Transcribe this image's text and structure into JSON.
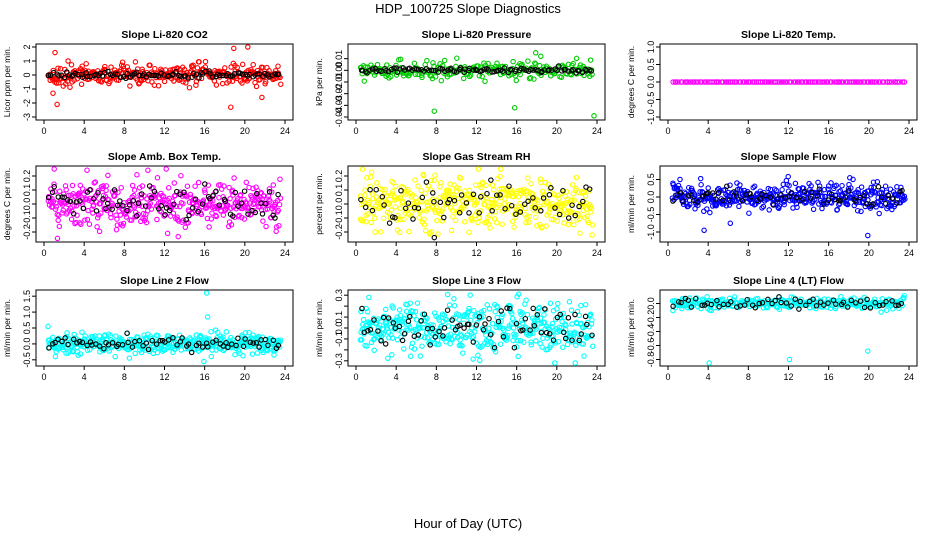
{
  "title": "HDP_100725  Slope Diagnostics",
  "xlabel": "Hour of Day (UTC)",
  "colors": {
    "red": "#ff0000",
    "green": "#00cc00",
    "magenta": "#ff00ff",
    "yellow": "#ffff00",
    "blue": "#0000ff",
    "cyan": "#00ffff",
    "black": "#000000"
  },
  "chart_data": [
    {
      "type": "scatter",
      "title": "Slope Li-820 CO2",
      "ylabel": "Licor ppm per min.",
      "xlim": [
        0,
        24
      ],
      "ylim": [
        -3,
        2
      ],
      "xticks": [
        0,
        4,
        8,
        12,
        16,
        20,
        24
      ],
      "yticks": [
        -3,
        -2,
        -1,
        0,
        1,
        2
      ],
      "ytick_labels": [
        "-3",
        "-2",
        "-1",
        "0",
        "1",
        "2"
      ],
      "series": [
        {
          "color": "red",
          "center": 0,
          "spread": 0.35,
          "n": 330,
          "outliers": [
            [
              1.1,
              1.6
            ],
            [
              0.9,
              -1.3
            ],
            [
              1.3,
              -2.1
            ],
            [
              18.9,
              1.9
            ],
            [
              20.3,
              2.0
            ],
            [
              18.6,
              -2.3
            ],
            [
              21.7,
              -1.6
            ],
            [
              2.4,
              1.0
            ]
          ]
        },
        {
          "color": "black",
          "center": 0,
          "spread": 0.12,
          "n": 95,
          "outliers": []
        }
      ]
    },
    {
      "type": "scatter",
      "title": "Slope Li-820 Pressure",
      "ylabel": "kPa per min.",
      "xlim": [
        0,
        24
      ],
      "ylim": [
        -0.04,
        0.02
      ],
      "xticks": [
        0,
        4,
        8,
        12,
        16,
        20,
        24
      ],
      "yticks": [
        -0.04,
        -0.03,
        -0.02,
        -0.01,
        0,
        0.01
      ],
      "ytick_labels": [
        "-0.04",
        "-0.03",
        "-0.02",
        "-0.01",
        "0.00",
        "0.01"
      ],
      "series": [
        {
          "color": "green",
          "center": 0,
          "spread": 0.0035,
          "n": 230,
          "outliers": [
            [
              7.8,
              -0.035
            ],
            [
              15.8,
              -0.032
            ],
            [
              23.7,
              -0.039
            ],
            [
              18.4,
              0.012
            ],
            [
              17.9,
              0.015
            ]
          ]
        },
        {
          "color": "black",
          "center": 0,
          "spread": 0.001,
          "n": 100,
          "outliers": []
        }
      ]
    },
    {
      "type": "scatter",
      "title": "Slope Li-820 Temp.",
      "ylabel": "degrees C per min.",
      "xlim": [
        0,
        24
      ],
      "ylim": [
        -1,
        1
      ],
      "xticks": [
        0,
        4,
        8,
        12,
        16,
        20,
        24
      ],
      "yticks": [
        -1,
        -0.5,
        0,
        0.5,
        1
      ],
      "ytick_labels": [
        "-1.0",
        "-0.5",
        "0.0",
        "0.5",
        "1.0"
      ],
      "series": [
        {
          "color": "magenta",
          "center": 0,
          "spread": 0.0,
          "n": 120,
          "outliers": []
        },
        {
          "color": "black",
          "center": 0,
          "spread": 0.0,
          "n": 0,
          "outliers": []
        }
      ]
    },
    {
      "type": "scatter",
      "title": "Slope Amb. Box Temp.",
      "ylabel": "degrees C per min.",
      "xlim": [
        0,
        24
      ],
      "ylim": [
        -0.25,
        0.25
      ],
      "xticks": [
        0,
        4,
        8,
        12,
        16,
        20,
        24
      ],
      "yticks": [
        -0.2,
        -0.1,
        0,
        0.1,
        0.2
      ],
      "ytick_labels": [
        "-0.2",
        "-0.1",
        "0.0",
        "0.1",
        "0.2"
      ],
      "series": [
        {
          "color": "magenta",
          "center": 0,
          "spread": 0.09,
          "n": 420,
          "outliers": []
        },
        {
          "color": "black",
          "center": 0,
          "spread": 0.06,
          "n": 75,
          "outliers": []
        }
      ]
    },
    {
      "type": "scatter",
      "title": "Slope Gas Stream RH",
      "ylabel": "percent per min.",
      "xlim": [
        0,
        24
      ],
      "ylim": [
        -0.25,
        0.25
      ],
      "xticks": [
        0,
        4,
        8,
        12,
        16,
        20,
        24
      ],
      "yticks": [
        -0.2,
        -0.1,
        0,
        0.1,
        0.2
      ],
      "ytick_labels": [
        "-0.2",
        "-0.1",
        "0.0",
        "0.1",
        "0.2"
      ],
      "series": [
        {
          "color": "yellow",
          "center": 0,
          "spread": 0.09,
          "n": 420,
          "outliers": []
        },
        {
          "color": "black",
          "center": 0,
          "spread": 0.07,
          "n": 60,
          "outliers": [
            [
              7.8,
              -0.24
            ]
          ]
        }
      ]
    },
    {
      "type": "scatter",
      "title": "Slope Sample Flow",
      "ylabel": "ml/min per min.",
      "xlim": [
        0,
        24
      ],
      "ylim": [
        -1.2,
        0.8
      ],
      "xticks": [
        0,
        4,
        8,
        12,
        16,
        20,
        24
      ],
      "yticks": [
        -1,
        -0.5,
        0,
        0.5
      ],
      "ytick_labels": [
        "-1.0",
        "-0.5",
        "0.0",
        "0.5"
      ],
      "series": [
        {
          "color": "blue",
          "center": 0,
          "spread": 0.18,
          "n": 420,
          "outliers": [
            [
              3.6,
              -0.95
            ],
            [
              6.2,
              -0.75
            ],
            [
              19.9,
              -1.1
            ],
            [
              18.1,
              0.55
            ],
            [
              1.2,
              0.5
            ]
          ]
        },
        {
          "color": "black",
          "center": 0,
          "spread": 0.12,
          "n": 65,
          "outliers": []
        }
      ]
    },
    {
      "type": "scatter",
      "title": "Slope Line 2 Flow",
      "ylabel": "ml/min per min.",
      "xlim": [
        0,
        24
      ],
      "ylim": [
        -0.6,
        1.6
      ],
      "xticks": [
        0,
        4,
        8,
        12,
        16,
        20,
        24
      ],
      "yticks": [
        -0.5,
        0,
        0.5,
        1,
        1.5
      ],
      "ytick_labels": [
        "-0.5",
        "0.0",
        "0.5",
        "1.0",
        "1.5"
      ],
      "series": [
        {
          "color": "cyan",
          "center": 0,
          "spread": 0.16,
          "n": 420,
          "outliers": [
            [
              16.2,
              1.6
            ],
            [
              16.3,
              0.85
            ],
            [
              0.4,
              0.55
            ]
          ]
        },
        {
          "color": "black",
          "center": 0,
          "spread": 0.09,
          "n": 70,
          "outliers": []
        }
      ]
    },
    {
      "type": "scatter",
      "title": "Slope Line 3 Flow",
      "ylabel": "ml/min per min.",
      "xlim": [
        0,
        24
      ],
      "ylim": [
        -0.32,
        0.32
      ],
      "xticks": [
        0,
        4,
        8,
        12,
        16,
        20,
        24
      ],
      "yticks": [
        -0.3,
        -0.2,
        -0.1,
        0,
        0.1,
        0.2,
        0.3
      ],
      "ytick_labels": [
        "-0.3",
        "",
        "-0.1",
        "0.0",
        "0.1",
        "",
        "0.3"
      ],
      "series": [
        {
          "color": "cyan",
          "center": 0,
          "spread": 0.11,
          "n": 430,
          "outliers": [
            [
              16.2,
              0.31
            ],
            [
              19.8,
              -0.32
            ]
          ]
        },
        {
          "color": "black",
          "center": 0,
          "spread": 0.1,
          "n": 75,
          "outliers": []
        }
      ]
    },
    {
      "type": "scatter",
      "title": "Slope Line 4 (LT) Flow",
      "ylabel": "ml/min per min.",
      "xlim": [
        0,
        24
      ],
      "ylim": [
        -0.85,
        0.15
      ],
      "xticks": [
        0,
        4,
        8,
        12,
        16,
        20,
        24
      ],
      "yticks": [
        -0.8,
        -0.6,
        -0.4,
        -0.2,
        0
      ],
      "ytick_labels": [
        "-0.8",
        "-0.6",
        "-0.4",
        "-0.2",
        "0.0"
      ],
      "series": [
        {
          "color": "cyan",
          "center": 0,
          "spread": 0.04,
          "n": 300,
          "outliers": [
            [
              4.1,
              -0.85
            ],
            [
              12.1,
              -0.8
            ],
            [
              19.9,
              -0.68
            ]
          ]
        },
        {
          "color": "black",
          "center": 0,
          "spread": 0.035,
          "n": 60,
          "outliers": []
        }
      ]
    }
  ]
}
